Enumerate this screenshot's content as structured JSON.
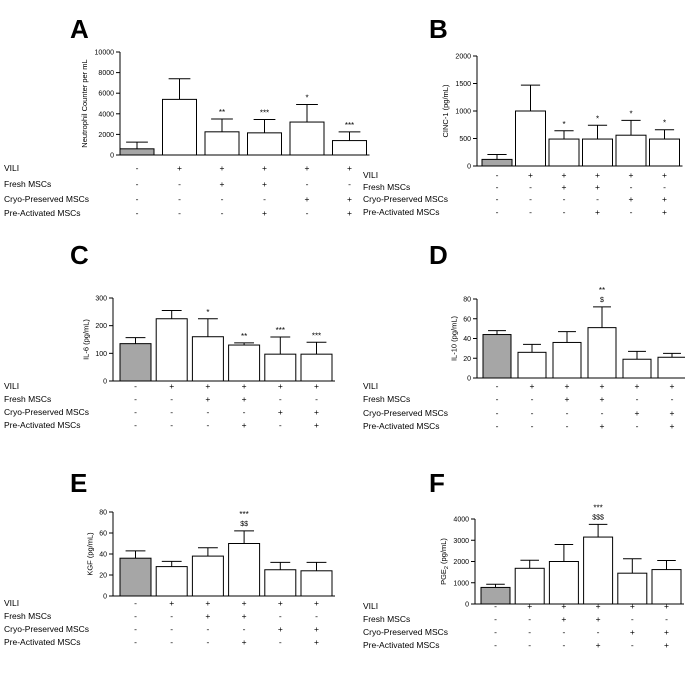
{
  "figure": {
    "conditions": [
      "VILI",
      "Fresh MSCs",
      "Cryo-Preserved MSCs",
      "Pre-Activated MSCs"
    ],
    "design": [
      [
        "-",
        "+",
        "+",
        "+",
        "+",
        "+"
      ],
      [
        "-",
        "-",
        "+",
        "+",
        "-",
        "-"
      ],
      [
        "-",
        "-",
        "-",
        "-",
        "+",
        "+"
      ],
      [
        "-",
        "-",
        "-",
        "+",
        "-",
        "+"
      ]
    ],
    "colors": {
      "control_bar": "#a6a6a6",
      "treatment_bar": "#ffffff",
      "axis": "#000000"
    }
  },
  "chart_data": [
    {
      "panel": "A",
      "type": "bar",
      "title": "",
      "xlabel": "",
      "ylabel": "Neutrophil Counter per mL",
      "ylim": [
        0,
        10000
      ],
      "yticks": [
        "0",
        "2000",
        "4000",
        "6000",
        "8000",
        "10000"
      ],
      "values": [
        600,
        5400,
        2250,
        2150,
        3200,
        1400
      ],
      "errors": [
        650,
        2000,
        1250,
        1300,
        1700,
        850
      ],
      "annotations": [
        [
          "",
          ""
        ],
        [
          "",
          ""
        ],
        [
          "**",
          ""
        ],
        [
          "***",
          ""
        ],
        [
          "*",
          ""
        ],
        [
          "***",
          ""
        ]
      ]
    },
    {
      "panel": "B",
      "type": "bar",
      "title": "",
      "xlabel": "",
      "ylabel": "CINC-1 (pg/mL)",
      "ylim": [
        0,
        2000
      ],
      "yticks": [
        "0",
        "500",
        "1000",
        "1500",
        "2000"
      ],
      "values": [
        120,
        1000,
        490,
        490,
        560,
        490
      ],
      "errors": [
        90,
        470,
        150,
        250,
        270,
        170
      ],
      "annotations": [
        [
          "",
          ""
        ],
        [
          "",
          ""
        ],
        [
          "*",
          ""
        ],
        [
          "*",
          ""
        ],
        [
          "*",
          ""
        ],
        [
          "*",
          ""
        ]
      ]
    },
    {
      "panel": "C",
      "type": "bar",
      "title": "",
      "xlabel": "",
      "ylabel": "IL-6 (pg/mL)",
      "ylim": [
        0,
        300
      ],
      "yticks": [
        "0",
        "100",
        "200",
        "300"
      ],
      "values": [
        135,
        225,
        160,
        130,
        97,
        97
      ],
      "errors": [
        22,
        30,
        65,
        8,
        62,
        43
      ],
      "annotations": [
        [
          "",
          ""
        ],
        [
          "",
          ""
        ],
        [
          "*",
          ""
        ],
        [
          "**",
          ""
        ],
        [
          "***",
          ""
        ],
        [
          "***",
          ""
        ]
      ]
    },
    {
      "panel": "D",
      "type": "bar",
      "title": "",
      "xlabel": "",
      "ylabel": "IL-10 (pg/mL)",
      "ylim": [
        0,
        80
      ],
      "yticks": [
        "0",
        "20",
        "40",
        "60",
        "80"
      ],
      "values": [
        44,
        26,
        36,
        51,
        19,
        21
      ],
      "errors": [
        4,
        8,
        11,
        21,
        8,
        4
      ],
      "annotations": [
        [
          "",
          ""
        ],
        [
          "",
          ""
        ],
        [
          "",
          ""
        ],
        [
          "**",
          "$"
        ],
        [
          "",
          ""
        ],
        [
          "",
          ""
        ]
      ]
    },
    {
      "panel": "E",
      "type": "bar",
      "title": "",
      "xlabel": "",
      "ylabel": "KGF (pg/mL)",
      "ylim": [
        0,
        80
      ],
      "yticks": [
        "0",
        "20",
        "40",
        "60",
        "80"
      ],
      "values": [
        36,
        28,
        38,
        50,
        25,
        24
      ],
      "errors": [
        7,
        5,
        8,
        12,
        7,
        8
      ],
      "annotations": [
        [
          "",
          ""
        ],
        [
          "",
          ""
        ],
        [
          "",
          ""
        ],
        [
          "***",
          "$$"
        ],
        [
          "",
          ""
        ],
        [
          "",
          ""
        ]
      ]
    },
    {
      "panel": "F",
      "type": "bar",
      "title": "",
      "xlabel": "",
      "ylabel": "PGE",
      "ylabel_subscript": "2",
      "ylabel_units": "(pg/mL)",
      "ylim": [
        0,
        4000
      ],
      "yticks": [
        "0",
        "1000",
        "2000",
        "3000",
        "4000"
      ],
      "values": [
        780,
        1680,
        2000,
        3150,
        1450,
        1620
      ],
      "errors": [
        150,
        380,
        800,
        600,
        680,
        430
      ],
      "annotations": [
        [
          "",
          ""
        ],
        [
          "",
          ""
        ],
        [
          "",
          ""
        ],
        [
          "***",
          "$$$"
        ],
        [
          "",
          ""
        ],
        [
          "",
          ""
        ]
      ]
    }
  ]
}
